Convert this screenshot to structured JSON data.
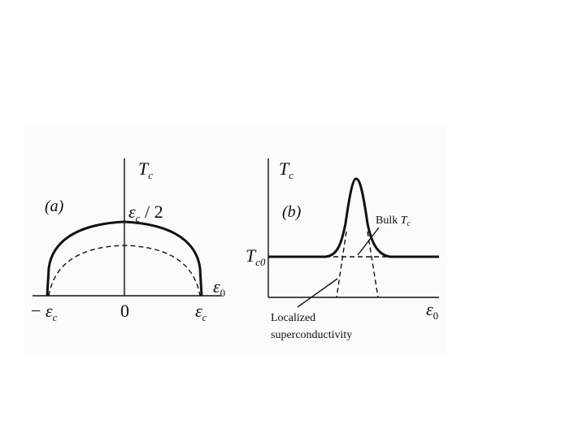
{
  "panels": [
    {
      "label": "(a)",
      "y_axis": {
        "symbol": "T",
        "sub": "c"
      },
      "top_label": {
        "symbol": "ε",
        "sub": "c",
        "suffix": " / 2"
      },
      "x_axis": {
        "symbol": "ε",
        "sub": "0"
      },
      "ticks": [
        {
          "prefix": "− ",
          "symbol": "ε",
          "sub": "c"
        },
        {
          "symbol": "0"
        },
        {
          "symbol": "ε",
          "sub": "c"
        }
      ]
    },
    {
      "label": "(b)",
      "y_axis": {
        "symbol": "T",
        "sub": "c"
      },
      "level_label": {
        "symbol": "T",
        "sub": "c0"
      },
      "bulk_label": {
        "prefix": "Bulk ",
        "symbol": "T",
        "sub": "c"
      },
      "localized_label": [
        "Localized",
        "superconductivity"
      ],
      "x_axis": {
        "symbol": "ε",
        "sub": "0"
      }
    }
  ]
}
